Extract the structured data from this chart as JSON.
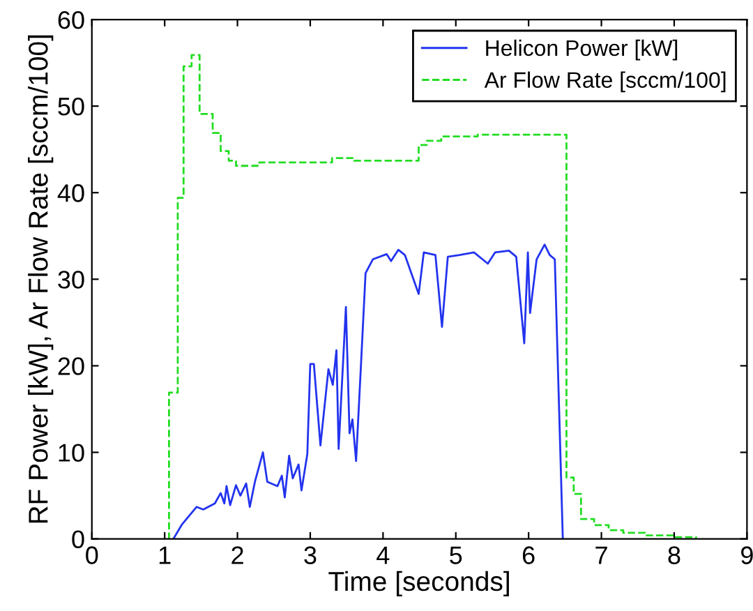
{
  "chart_data": {
    "type": "line",
    "xlabel": "Time [seconds]",
    "ylabel": "RF Power [kW], Ar Flow Rate [sccm/100]",
    "xlim": [
      0,
      9
    ],
    "ylim": [
      0,
      60
    ],
    "xticks": [
      0,
      1,
      2,
      3,
      4,
      5,
      6,
      7,
      8,
      9
    ],
    "yticks": [
      0,
      10,
      20,
      30,
      40,
      50,
      60
    ],
    "grid": false,
    "legend": "top right",
    "series": [
      {
        "name": "Ar Flow Rate [sccm/100]",
        "type": "step",
        "color": "#22dd22",
        "line_style": "dashed",
        "x": [
          1.05,
          1.06,
          1.18,
          1.26,
          1.37,
          1.48,
          1.66,
          1.77,
          1.88,
          1.98,
          2.3,
          3.3,
          3.6,
          4.49,
          4.6,
          4.8,
          5.3,
          6.52,
          6.62,
          6.72,
          6.9,
          7.1,
          7.3,
          7.6,
          8.0,
          8.3
        ],
        "values": [
          0,
          16.9,
          39.4,
          54.6,
          55.9,
          49.1,
          46.9,
          44.8,
          43.7,
          43.1,
          43.5,
          44,
          43.7,
          45.5,
          46,
          46.5,
          46.7,
          7.1,
          5.2,
          2.3,
          1.6,
          1.0,
          0.7,
          0.4,
          0.2,
          0
        ]
      },
      {
        "name": "Helicon Power [kW]",
        "color": "#2233ee",
        "line_style": "solid",
        "x": [
          1.12,
          1.24,
          1.44,
          1.53,
          1.69,
          1.77,
          1.82,
          1.85,
          1.9,
          1.98,
          2.04,
          2.12,
          2.17,
          2.24,
          2.35,
          2.41,
          2.55,
          2.61,
          2.65,
          2.71,
          2.76,
          2.84,
          2.88,
          2.96,
          3.0,
          3.05,
          3.14,
          3.25,
          3.31,
          3.36,
          3.39,
          3.49,
          3.54,
          3.58,
          3.63,
          3.7,
          3.76,
          3.86,
          4.05,
          4.11,
          4.21,
          4.3,
          4.49,
          4.56,
          4.72,
          4.81,
          4.89,
          5.05,
          5.25,
          5.44,
          5.54,
          5.73,
          5.83,
          5.94,
          5.99,
          6.02,
          6.11,
          6.22,
          6.29,
          6.36,
          6.47
        ],
        "values": [
          0,
          1.7,
          3.7,
          3.4,
          4.1,
          5.3,
          4.1,
          6.1,
          3.9,
          6.2,
          5.0,
          6.4,
          3.7,
          6.6,
          10.0,
          6.6,
          6.1,
          7.3,
          4.8,
          9.6,
          7.0,
          8.6,
          5.6,
          9.8,
          20.2,
          20.2,
          10.8,
          19.6,
          17.8,
          21.8,
          10.4,
          26.8,
          12.2,
          13.8,
          9.0,
          20.6,
          30.7,
          32.3,
          32.9,
          32.1,
          33.4,
          32.8,
          28.3,
          33.1,
          32.8,
          24.5,
          32.6,
          32.8,
          33.1,
          31.8,
          33.1,
          33.3,
          32.6,
          22.6,
          33.1,
          26.1,
          32.3,
          34.0,
          32.8,
          32.3,
          0
        ]
      }
    ]
  }
}
